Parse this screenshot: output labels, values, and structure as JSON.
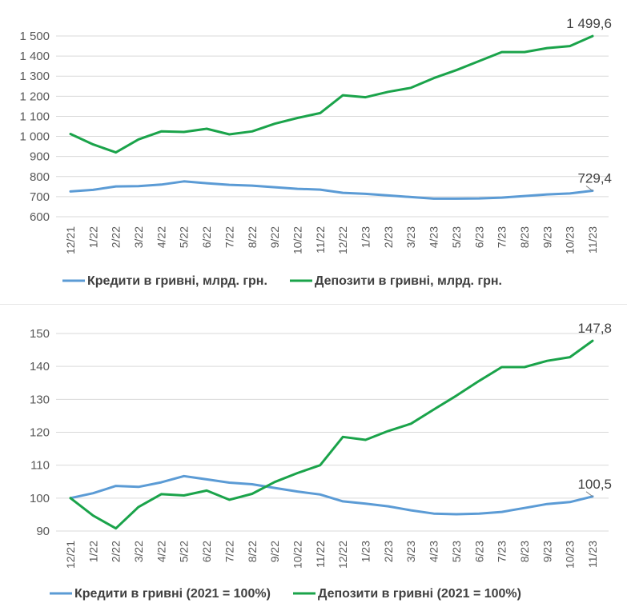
{
  "colors": {
    "credits": "#5b9bd5",
    "deposits": "#1aa34a",
    "grid": "#d9d9d9",
    "text": "#595959"
  },
  "chart_data": [
    {
      "type": "line",
      "x": [
        "12/21",
        "1/22",
        "2/22",
        "3/22",
        "4/22",
        "5/22",
        "6/22",
        "7/22",
        "8/22",
        "9/22",
        "10/22",
        "11/22",
        "12/22",
        "1/23",
        "2/23",
        "3/23",
        "4/23",
        "5/23",
        "6/23",
        "7/23",
        "8/23",
        "9/23",
        "10/23",
        "11/23"
      ],
      "yticks": [
        "600",
        "700",
        "800",
        "900",
        "1 000",
        "1 100",
        "1 200",
        "1 300",
        "1 400",
        "1 500"
      ],
      "ylim": [
        600,
        1500
      ],
      "grid": true,
      "legend": "bottom",
      "series": [
        {
          "name": "Кредити в гривні, млрд. грн.",
          "color": "#5b9bd5",
          "values": [
            726,
            734,
            751,
            752,
            760,
            776,
            767,
            759,
            755,
            747,
            739,
            735,
            719,
            714,
            706,
            698,
            690,
            690,
            691,
            695,
            703,
            711,
            716,
            729.4
          ],
          "end_label": "729,4"
        },
        {
          "name": "Депозити в гривні, млрд. грн.",
          "color": "#1aa34a",
          "values": [
            1012,
            960,
            920,
            985,
            1025,
            1022,
            1038,
            1010,
            1025,
            1063,
            1092,
            1116,
            1205,
            1195,
            1222,
            1242,
            1290,
            1330,
            1375,
            1420,
            1420,
            1440,
            1450,
            1499.6
          ],
          "end_label": "1 499,6"
        }
      ]
    },
    {
      "type": "line",
      "x": [
        "12/21",
        "1/22",
        "2/22",
        "3/22",
        "4/22",
        "5/22",
        "6/22",
        "7/22",
        "8/22",
        "9/22",
        "10/22",
        "11/22",
        "12/22",
        "1/23",
        "2/23",
        "3/23",
        "4/23",
        "5/23",
        "6/23",
        "7/23",
        "8/23",
        "9/23",
        "10/23",
        "11/23"
      ],
      "yticks": [
        "90",
        "100",
        "110",
        "120",
        "130",
        "140",
        "150"
      ],
      "ylim": [
        90,
        150
      ],
      "grid": true,
      "legend": "bottom",
      "series": [
        {
          "name": "Кредити в гривні (2021 = 100%)",
          "color": "#5b9bd5",
          "values": [
            100,
            101.5,
            103.7,
            103.4,
            104.8,
            106.7,
            105.7,
            104.7,
            104.2,
            103.1,
            102,
            101.1,
            99,
            98.3,
            97.5,
            96.3,
            95.3,
            95.1,
            95.3,
            95.8,
            97,
            98.2,
            98.8,
            100.5
          ],
          "end_label": "100,5"
        },
        {
          "name": "Депозити в гривні (2021 = 100%)",
          "color": "#1aa34a",
          "values": [
            100,
            94.7,
            90.8,
            97.3,
            101.2,
            100.8,
            102.3,
            99.5,
            101.3,
            104.9,
            107.6,
            110,
            118.6,
            117.7,
            120.4,
            122.6,
            126.9,
            131.1,
            135.6,
            139.8,
            139.8,
            141.7,
            142.8,
            147.8
          ],
          "end_label": "147,8"
        }
      ]
    }
  ]
}
